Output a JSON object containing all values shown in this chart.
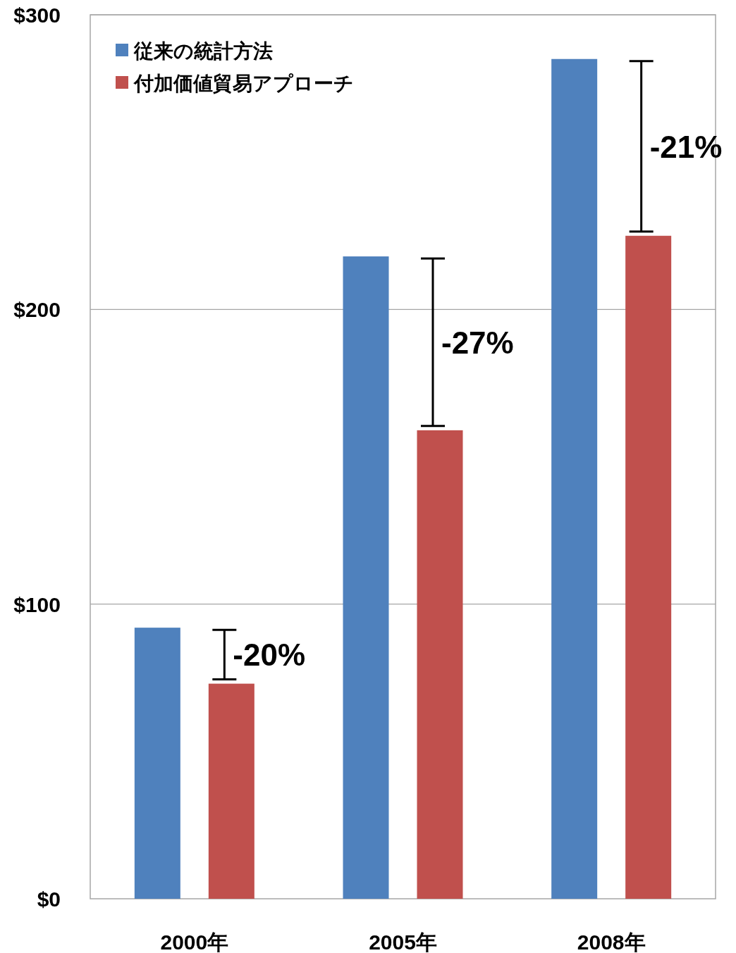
{
  "chart_data": {
    "type": "bar",
    "categories": [
      "2000年",
      "2005年",
      "2008年"
    ],
    "series": [
      {
        "name": "従来の統計方法",
        "color": "#4f81bd",
        "values": [
          92,
          218,
          285
        ]
      },
      {
        "name": "付加価値貿易アプローチ",
        "color": "#c0504d",
        "values": [
          73,
          159,
          225
        ]
      }
    ],
    "ylim": [
      0,
      300
    ],
    "yticks": [
      {
        "value": 0,
        "label": "$0"
      },
      {
        "value": 100,
        "label": "$100"
      },
      {
        "value": 200,
        "label": "$200"
      },
      {
        "value": 300,
        "label": "$300"
      }
    ],
    "grid": "y",
    "legend": "top left",
    "annotations": [
      "-20%",
      "-27%",
      "-21%"
    ]
  }
}
